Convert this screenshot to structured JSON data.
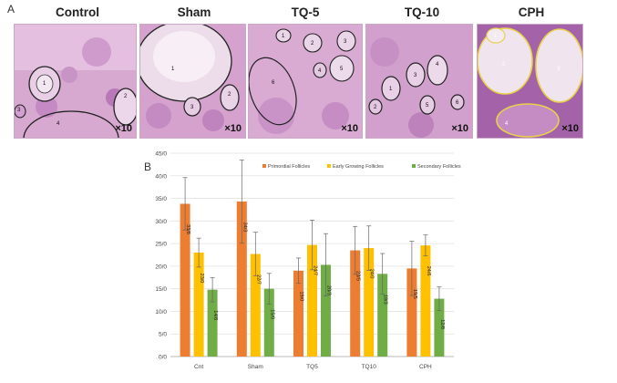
{
  "figure": {
    "panel_a": "A",
    "panel_b": "B",
    "magnification": "×10",
    "images": [
      {
        "title": "Control",
        "labels": [
          "1",
          "2",
          "3",
          "4"
        ]
      },
      {
        "title": "Sham",
        "labels": [
          "1",
          "2",
          "3"
        ]
      },
      {
        "title": "TQ-5",
        "labels": [
          "1",
          "2",
          "3",
          "4",
          "5",
          "6"
        ]
      },
      {
        "title": "TQ-10",
        "labels": [
          "1",
          "2",
          "3",
          "4",
          "5",
          "6"
        ]
      },
      {
        "title": "CPH",
        "labels": [
          "1",
          "2",
          "3",
          "4"
        ]
      }
    ]
  },
  "colors": {
    "primordial": "#ED7D31",
    "early": "#FFC000",
    "secondary": "#70AD47",
    "tissue": "#d7a8d0",
    "tissue_dark": "#9c5da0",
    "circle_cph": "#e8d24a"
  },
  "chart_data": {
    "type": "bar",
    "title": "",
    "xlabel": "",
    "ylabel": "",
    "ylim": [
      0,
      45
    ],
    "yticks": [
      "0/0",
      "5/0",
      "10/0",
      "15/0",
      "20/0",
      "25/0",
      "30/0",
      "35/0",
      "40/0",
      "45/0"
    ],
    "categories": [
      "Cnt",
      "Sham",
      "TQ5",
      "TQ10",
      "CPH"
    ],
    "legend_position": "top",
    "series": [
      {
        "name": "Primordial Follicles",
        "values": [
          33.8,
          34.3,
          19.0,
          23.5,
          19.5
        ],
        "errors": [
          5.8,
          9.2,
          2.8,
          5.3,
          6.0
        ],
        "labels": [
          "33/8",
          "34/3",
          "19/0",
          "23/5",
          "19/5"
        ]
      },
      {
        "name": "Early Growing Follicles",
        "values": [
          23.0,
          22.7,
          24.7,
          24.0,
          24.6
        ],
        "errors": [
          3.2,
          4.8,
          5.5,
          4.9,
          2.3
        ],
        "labels": [
          "23/0",
          "22/7",
          "24/7",
          "24/0",
          "24/6"
        ]
      },
      {
        "name": "Secondary Follicles",
        "values": [
          14.8,
          15.0,
          20.3,
          18.3,
          12.8
        ],
        "errors": [
          2.7,
          3.4,
          6.9,
          4.5,
          2.6
        ],
        "labels": [
          "14/8",
          "15/0",
          "20/3",
          "18/3",
          "12/8"
        ]
      }
    ]
  }
}
